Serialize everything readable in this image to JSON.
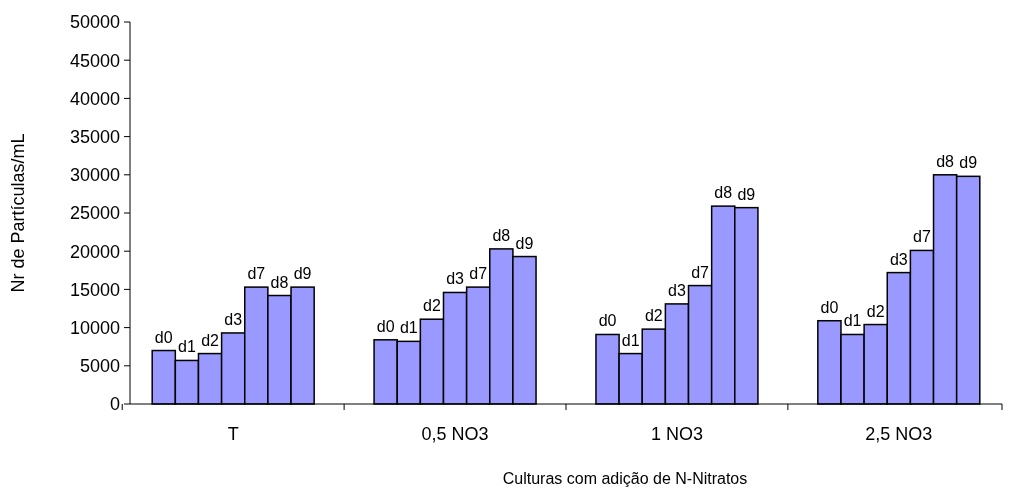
{
  "chart_data": {
    "type": "bar",
    "xlabel": "Culturas com adição de N-Nitratos",
    "ylabel": "Nr de Partículas/mL",
    "categories": [
      "T",
      "0,5 NO3",
      "1 NO3",
      "2,5 NO3"
    ],
    "series": [
      {
        "name": "d0",
        "color": "#9999ff",
        "values": [
          7000,
          8400,
          9100,
          10900
        ]
      },
      {
        "name": "d1",
        "color": "#9999ff",
        "values": [
          5700,
          8200,
          6600,
          9100
        ]
      },
      {
        "name": "d2",
        "color": "#9999ff",
        "values": [
          6600,
          11100,
          9800,
          10400
        ]
      },
      {
        "name": "d3",
        "color": "#9999ff",
        "values": [
          9300,
          14600,
          13100,
          17200
        ]
      },
      {
        "name": "d7",
        "color": "#9999ff",
        "values": [
          15300,
          15300,
          15500,
          20100
        ]
      },
      {
        "name": "d8",
        "color": "#9999ff",
        "values": [
          14200,
          20300,
          25900,
          30000
        ]
      },
      {
        "name": "d9",
        "color": "#9999ff",
        "values": [
          15300,
          19300,
          25700,
          29800
        ]
      }
    ],
    "ylim": [
      0,
      50000
    ],
    "yticks": [
      0,
      5000,
      10000,
      15000,
      20000,
      25000,
      30000,
      35000,
      40000,
      45000,
      50000
    ],
    "grid": false
  }
}
